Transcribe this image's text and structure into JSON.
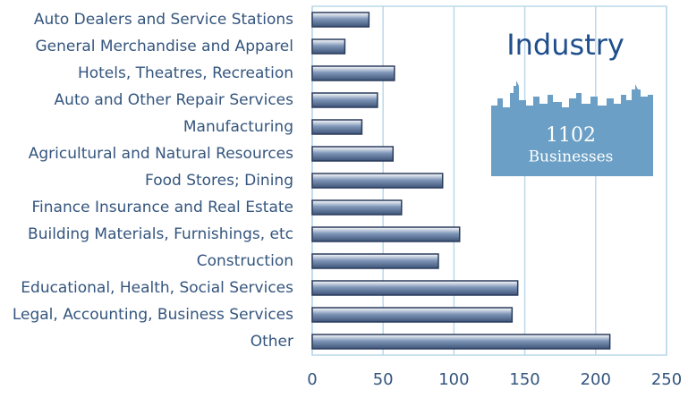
{
  "chart_data": {
    "type": "barh",
    "title": "Industry",
    "annotations": [
      "1102",
      "Businesses"
    ],
    "categories": [
      "Auto Dealers and Service Stations",
      "General Merchandise and Apparel",
      "Hotels, Theatres, Recreation",
      "Auto and Other Repair Services",
      "Manufacturing",
      "Agricultural and Natural Resources",
      "Food Stores; Dining",
      "Finance Insurance and Real Estate",
      "Building Materials, Furnishings, etc",
      "Construction",
      "Educational, Health, Social Services",
      "Legal, Accounting, Business Services",
      "Other"
    ],
    "values": [
      40,
      23,
      58,
      46,
      35,
      57,
      92,
      63,
      104,
      89,
      145,
      141,
      210
    ],
    "color": "#7f96b8",
    "xlim": [
      0,
      250
    ],
    "xticks": [
      0,
      50,
      100,
      150,
      200,
      250
    ],
    "grid": true
  }
}
